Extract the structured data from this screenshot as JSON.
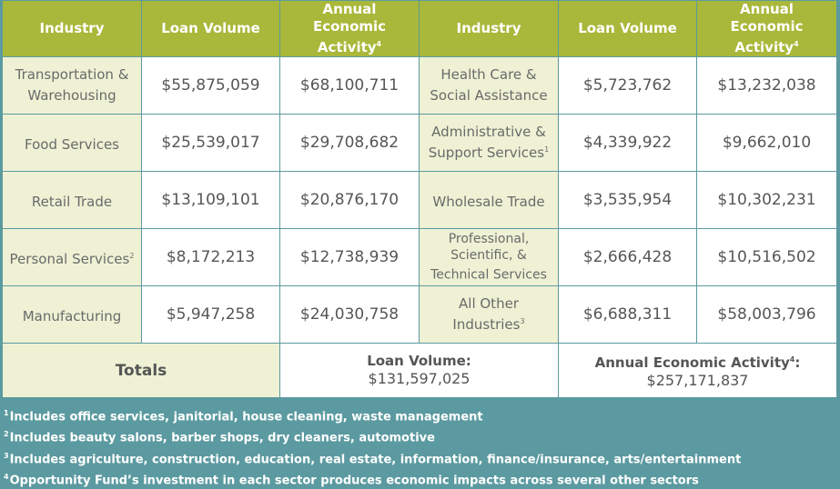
{
  "headers": {
    "industry": "Industry",
    "loan_volume": "Loan Volume",
    "annual_line1": "Annual",
    "annual_line2": "Economic Activity",
    "annual_note": "4"
  },
  "left_rows": [
    {
      "industry": "Transportation & Warehousing",
      "loan": "$55,875,059",
      "annual": "$68,100,711",
      "note": ""
    },
    {
      "industry": "Food Services",
      "loan": "$25,539,017",
      "annual": "$29,708,682",
      "note": ""
    },
    {
      "industry": "Retail Trade",
      "loan": "$13,109,101",
      "annual": "$20,876,170",
      "note": ""
    },
    {
      "industry": "Personal Services",
      "loan": "$8,172,213",
      "annual": "$12,738,939",
      "note": "2"
    },
    {
      "industry": "Manufacturing",
      "loan": "$5,947,258",
      "annual": "$24,030,758",
      "note": ""
    }
  ],
  "right_rows": [
    {
      "industry": "Health Care & Social Assistance",
      "loan": "$5,723,762",
      "annual": "$13,232,038",
      "note": ""
    },
    {
      "industry": "Administrative & Support Services",
      "loan": "$4,339,922",
      "annual": "$9,662,010",
      "note": "1"
    },
    {
      "industry": "Wholesale Trade",
      "loan": "$3,535,954",
      "annual": "$10,302,231",
      "note": ""
    },
    {
      "industry": "Professional, Scientific, & Technical Services",
      "loan": "$2,666,428",
      "annual": "$10,516,502",
      "note": ""
    },
    {
      "industry": "All Other Industries",
      "loan": "$6,688,311",
      "annual": "$58,003,796",
      "note": "3"
    }
  ],
  "totals": {
    "label": "Totals",
    "loan_label": "Loan Volume:",
    "loan_value": "$131,597,025",
    "annual_label": "Annual Economic Activity",
    "annual_note": "4",
    "annual_suffix": ":",
    "annual_value": "$257,171,837"
  },
  "footnotes": [
    {
      "mark": "1",
      "text": "Includes office services, janitorial, house cleaning, waste management"
    },
    {
      "mark": "2",
      "text": "Includes beauty salons, barber shops, dry cleaners, automotive"
    },
    {
      "mark": "3",
      "text": "Includes agriculture, construction, education, real estate, information, finance/insurance, arts/entertainment"
    },
    {
      "mark": "4",
      "text": "Opportunity Fund’s investment in each sector produces economic impacts across several other sectors"
    }
  ]
}
